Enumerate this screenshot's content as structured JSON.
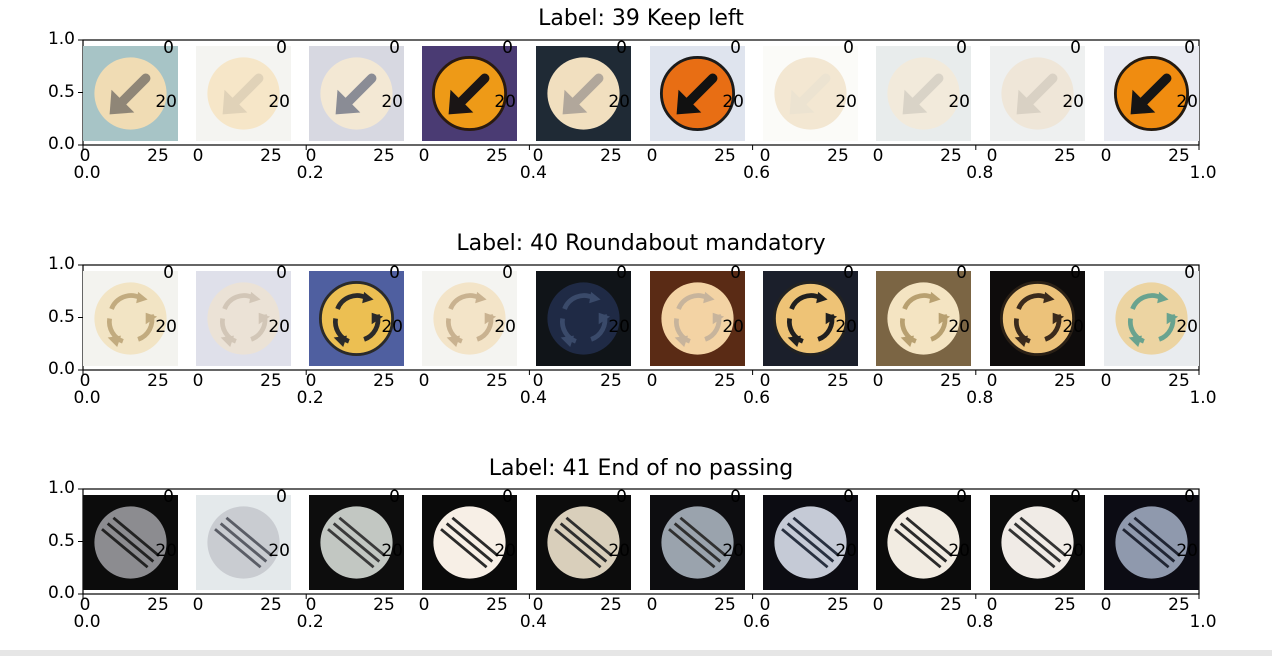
{
  "rows": [
    {
      "title": "Label: 39  Keep left",
      "sign": "keep-left",
      "tiles": [
        {
          "bg": "#a7c4c6",
          "disc": "#f0dcb4",
          "mark": "#8f8677",
          "ring": null
        },
        {
          "bg": "#f4f4f1",
          "disc": "#f6e6c8",
          "mark": "#e0d2b8",
          "ring": null
        },
        {
          "bg": "#d7d8e1",
          "disc": "#f3e8d4",
          "mark": "#8a8c95",
          "ring": null
        },
        {
          "bg": "#4a3b73",
          "disc": "#ee9a17",
          "mark": "#1a1515",
          "ring": "#2a1a10"
        },
        {
          "bg": "#1f2a35",
          "disc": "#f1dfbf",
          "mark": "#b1a79b",
          "ring": null
        },
        {
          "bg": "#dfe4ee",
          "disc": "#e86e14",
          "mark": "#111111",
          "ring": "#1b1b1b"
        },
        {
          "bg": "#fbfbf8",
          "disc": "#f3e7d2",
          "mark": "#ece3d1",
          "ring": null
        },
        {
          "bg": "#e8ecec",
          "disc": "#f2eadb",
          "mark": "#d9d3c7",
          "ring": null
        },
        {
          "bg": "#eef0f0",
          "disc": "#efe6d8",
          "mark": "#d9d1c4",
          "ring": null
        },
        {
          "bg": "#e9ebf2",
          "disc": "#f08c10",
          "mark": "#151515",
          "ring": "#241a10"
        }
      ]
    },
    {
      "title": "Label: 40  Roundabout mandatory",
      "sign": "roundabout",
      "tiles": [
        {
          "bg": "#f3f3ef",
          "disc": "#f2e4c4",
          "mark": "#c2ab7f",
          "ring": null
        },
        {
          "bg": "#dfe0ea",
          "disc": "#ebe2d6",
          "mark": "#d2c6b7",
          "ring": null
        },
        {
          "bg": "#4f5fa0",
          "disc": "#ecbf52",
          "mark": "#2a2a2a",
          "ring": "#2a2a2a"
        },
        {
          "bg": "#f4f4f1",
          "disc": "#f3e4c8",
          "mark": "#c9b290",
          "ring": null
        },
        {
          "bg": "#101418",
          "disc": "#1f2a45",
          "mark": "#3a4a6a",
          "ring": null
        },
        {
          "bg": "#5a2b15",
          "disc": "#f3d3a4",
          "mark": "#c7b49c",
          "ring": null
        },
        {
          "bg": "#1b1f2b",
          "disc": "#eec376",
          "mark": "#1f1f1f",
          "ring": "#222"
        },
        {
          "bg": "#7b6544",
          "disc": "#f4e4c2",
          "mark": "#b8a070",
          "ring": null
        },
        {
          "bg": "#0e0c0c",
          "disc": "#ecc27a",
          "mark": "#3a2a1c",
          "ring": "#2a2016"
        },
        {
          "bg": "#e9ecef",
          "disc": "#ecd4a2",
          "mark": "#69a38f",
          "ring": null
        }
      ]
    },
    {
      "title": "Label: 41  End of no passing",
      "sign": "end-no-passing",
      "tiles": [
        {
          "bg": "#0c0c0c",
          "disc": "#8c8c90",
          "mark": "#222",
          "ring": null
        },
        {
          "bg": "#e4e9eb",
          "disc": "#c9ccd1",
          "mark": "#5a5d66",
          "ring": null
        },
        {
          "bg": "#0d0d0d",
          "disc": "#c2c7c2",
          "mark": "#3a3a3a",
          "ring": null
        },
        {
          "bg": "#0a0a0a",
          "disc": "#f7efe6",
          "mark": "#2a2a2a",
          "ring": null
        },
        {
          "bg": "#0c0c0c",
          "disc": "#d9cfbb",
          "mark": "#2e2e2e",
          "ring": null
        },
        {
          "bg": "#0d0d10",
          "disc": "#9aa3ad",
          "mark": "#303030",
          "ring": null
        },
        {
          "bg": "#0c0c12",
          "disc": "#c5cad6",
          "mark": "#283040",
          "ring": null
        },
        {
          "bg": "#0b0b0b",
          "disc": "#f2ece2",
          "mark": "#2a2a2a",
          "ring": null
        },
        {
          "bg": "#0c0c0c",
          "disc": "#f0ebe6",
          "mark": "#333",
          "ring": null
        },
        {
          "bg": "#0c0c14",
          "disc": "#8f99ad",
          "mark": "#202533",
          "ring": null
        }
      ]
    }
  ],
  "outer_axis": {
    "y_ticks": [
      "0.0",
      "0.5",
      "1.0"
    ],
    "x_ticks": [
      "0.0",
      "0.2",
      "0.4",
      "0.6",
      "0.8",
      "1.0"
    ]
  },
  "inner_axis": {
    "x_ticks": [
      "0",
      "25"
    ],
    "y_ticks": [
      "0",
      "20"
    ]
  }
}
